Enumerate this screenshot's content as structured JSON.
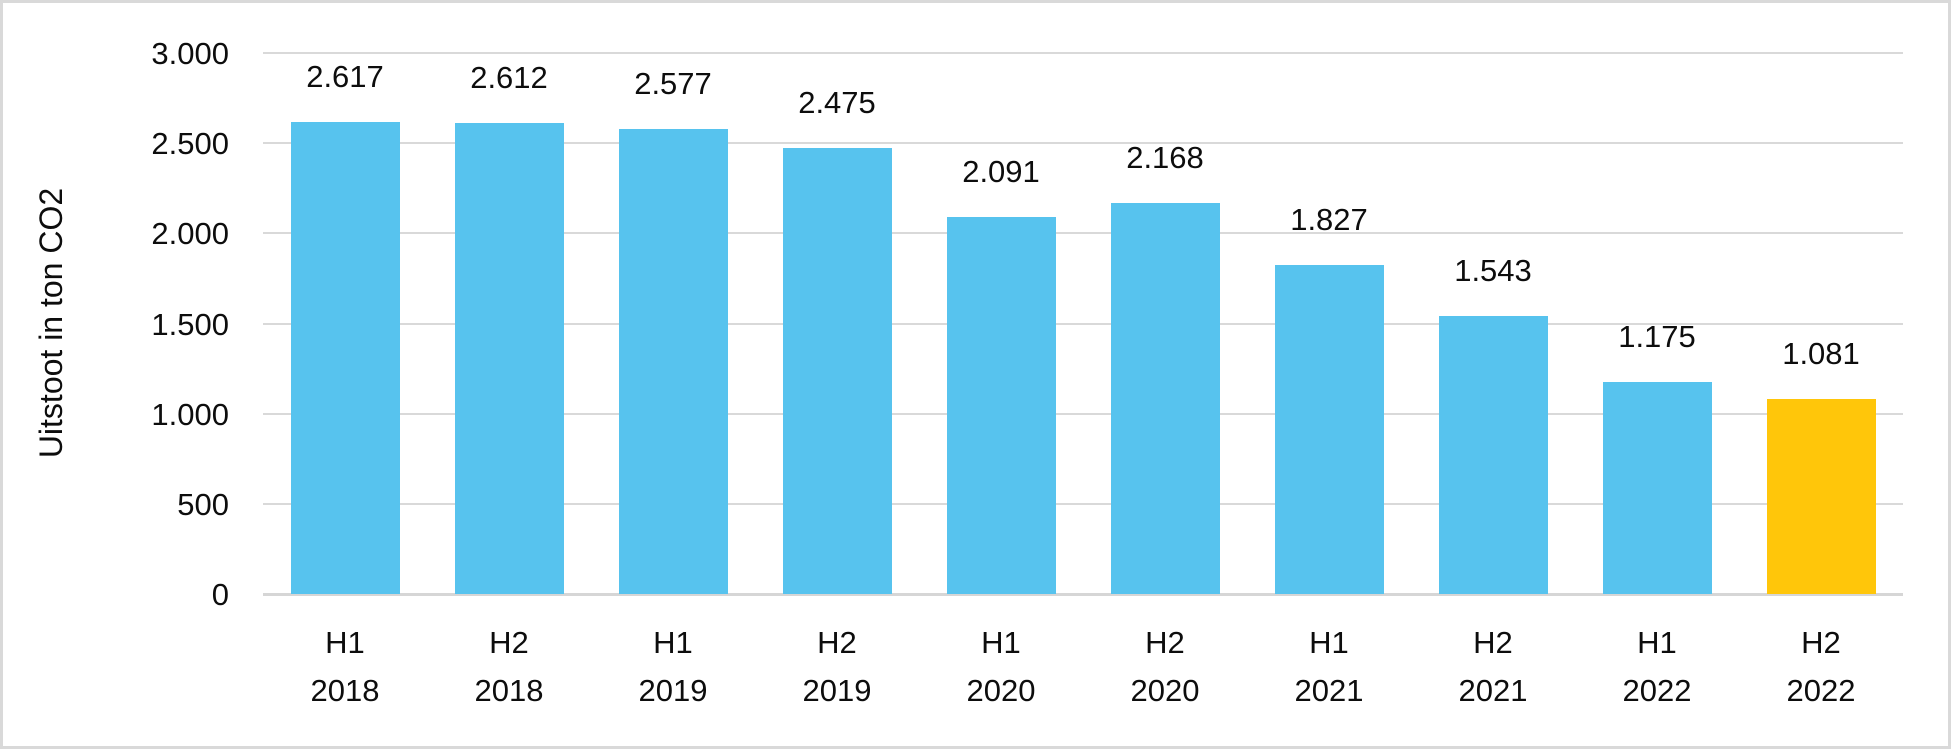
{
  "chart_data": {
    "type": "bar",
    "title": "",
    "ylabel": "Uitstoot in ton CO2",
    "xlabel": "",
    "ylim": [
      0,
      3000
    ],
    "grid": true,
    "legend": "none",
    "number_format": "dutch-thousands-dot",
    "categories": [
      [
        "H1",
        "2018"
      ],
      [
        "H2",
        "2018"
      ],
      [
        "H1",
        "2019"
      ],
      [
        "H2",
        "2019"
      ],
      [
        "H1",
        "2020"
      ],
      [
        "H2",
        "2020"
      ],
      [
        "H1",
        "2021"
      ],
      [
        "H2",
        "2021"
      ],
      [
        "H1",
        "2022"
      ],
      [
        "H2",
        "2022"
      ]
    ],
    "values": [
      2617,
      2612,
      2577,
      2475,
      2091,
      2168,
      1827,
      1543,
      1175,
      1081
    ],
    "value_labels": [
      "2.617",
      "2.612",
      "2.577",
      "2.475",
      "2.091",
      "2.168",
      "1.827",
      "1.543",
      "1.175",
      "1.081"
    ],
    "yticks": [
      {
        "value": 0,
        "label": "0"
      },
      {
        "value": 500,
        "label": "500"
      },
      {
        "value": 1000,
        "label": "1.000"
      },
      {
        "value": 1500,
        "label": "1.500"
      },
      {
        "value": 2000,
        "label": "2.000"
      },
      {
        "value": 2500,
        "label": "2.500"
      },
      {
        "value": 3000,
        "label": "3.000"
      }
    ],
    "colors": {
      "bar": "#57C3EE",
      "highlight": "#FFC60A",
      "gridline": "#D9D9D9",
      "axis_line": "#D6D6D6",
      "text": "#0D0D0D",
      "frame_border": "#D9D9D9",
      "background": "#FFFFFF"
    },
    "highlight_index": 9
  }
}
